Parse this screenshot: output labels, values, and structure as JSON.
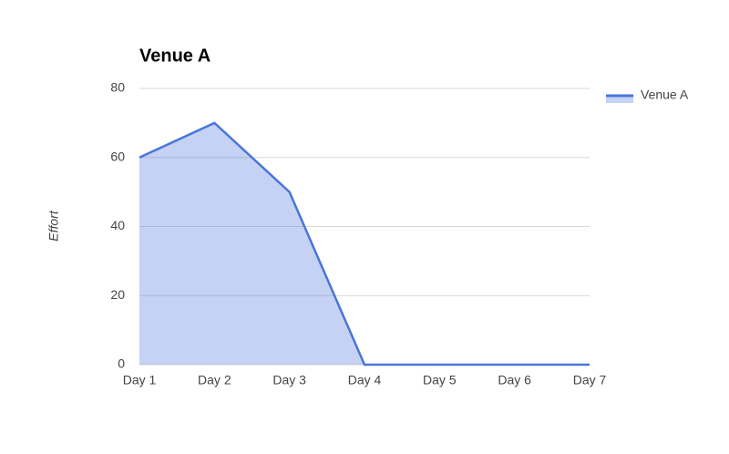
{
  "chart_data": {
    "type": "area",
    "title": "Venue A",
    "y_label": "Effort",
    "categories": [
      "Day 1",
      "Day 2",
      "Day 3",
      "Day 4",
      "Day 5",
      "Day 6",
      "Day 7"
    ],
    "series": [
      {
        "name": "Venue A",
        "color": "#4a74d9",
        "values": [
          60,
          70,
          50,
          0,
          0,
          0,
          0
        ]
      }
    ],
    "ylim": [
      0,
      80
    ],
    "yticks": [
      0,
      20,
      40,
      60,
      80
    ],
    "grid": true,
    "legend": "right"
  }
}
